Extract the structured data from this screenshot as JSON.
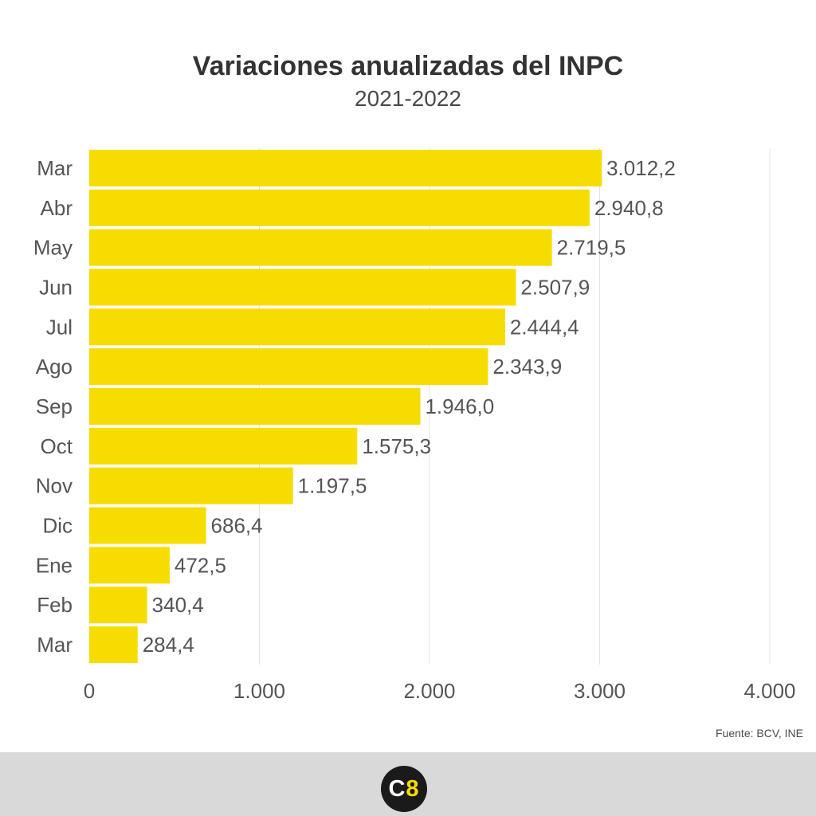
{
  "chart_data": {
    "type": "bar",
    "orientation": "horizontal",
    "title": "Variaciones anualizadas del INPC",
    "subtitle": "2021-2022",
    "categories": [
      "Mar",
      "Abr",
      "May",
      "Jun",
      "Jul",
      "Ago",
      "Sep",
      "Oct",
      "Nov",
      "Dic",
      "Ene",
      "Feb",
      "Mar"
    ],
    "values": [
      3012.2,
      2940.8,
      2719.5,
      2507.9,
      2444.4,
      2343.9,
      1946.0,
      1575.3,
      1197.5,
      686.4,
      472.5,
      340.4,
      284.4
    ],
    "value_labels": [
      "3.012,2",
      "2.940,8",
      "2.719,5",
      "2.507,9",
      "2.444,4",
      "2.343,9",
      "1.946,0",
      "1.575,3",
      "1.197,5",
      "686,4",
      "472,5",
      "340,4",
      "284,4"
    ],
    "xlim": [
      0,
      4000
    ],
    "x_ticks": [
      0,
      1000,
      2000,
      3000,
      4000
    ],
    "x_tick_labels": [
      "0",
      "1.000",
      "2.000",
      "3.000",
      "4.000"
    ],
    "xlabel": "",
    "ylabel": "",
    "grid": "vertical",
    "bar_color": "#f7dc00"
  },
  "source": "Fuente: BCV, INE",
  "logo": {
    "letter": "C",
    "number": "8"
  }
}
